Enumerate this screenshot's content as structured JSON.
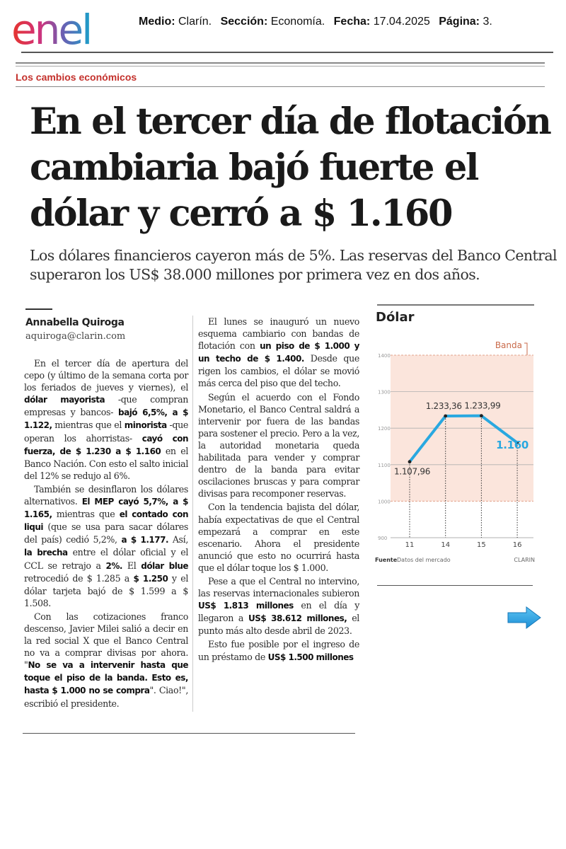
{
  "header": {
    "logo_text": "enel",
    "medio_label": "Medio:",
    "medio_value": "Clarín.",
    "seccion_label": "Sección:",
    "seccion_value": "Economía.",
    "fecha_label": "Fecha:",
    "fecha_value": "17.04.2025",
    "pagina_label": "Página:",
    "pagina_value": "3."
  },
  "article": {
    "section": "Los cambios económicos",
    "headline": [
      "En el tercer día de flotación",
      "cambiaria bajó fuerte el",
      "dólar y cerró a $ 1.160"
    ],
    "subhead": [
      "Los dólares financieros cayeron más de 5%. Las reservas del Banco Central",
      "superaron los US$ 38.000 millones por primera vez en dos años."
    ],
    "author": "Annabella Quiroga",
    "email": "aquiroga@clarin.com",
    "col1": {
      "p1": [
        {
          "t": "En el tercer día de apertura del cepo (y último de la semana corta por los feriados de jueves y viernes), el "
        },
        {
          "t": "dólar mayorista",
          "b": true
        },
        {
          "t": " -que compran empresas y bancos- "
        },
        {
          "t": "bajó 6,5%, a $ 1.122,",
          "b": true
        },
        {
          "t": " mientras que el "
        },
        {
          "t": "minorista",
          "b": true
        },
        {
          "t": " -que operan los ahorristas- "
        },
        {
          "t": "cayó con fuerza, de $ 1.230 a $ 1.160",
          "b": true
        },
        {
          "t": " en el Banco Nación. Con esto el salto inicial del 12% se redujo al 6%."
        }
      ],
      "p2": [
        {
          "t": "También se desinflaron los dólares alternativos. "
        },
        {
          "t": "El MEP cayó 5,7%, a $ 1.165,",
          "b": true
        },
        {
          "t": " mientras que "
        },
        {
          "t": "el contado con liqui",
          "b": true
        },
        {
          "t": " (que se usa para sacar dólares del país) cedió 5,2%, "
        },
        {
          "t": "a $ 1.177.",
          "b": true
        },
        {
          "t": " Así, "
        },
        {
          "t": "la brecha",
          "b": true
        },
        {
          "t": " entre el dólar oficial y el CCL se retrajo a "
        },
        {
          "t": "2%.",
          "b": true
        },
        {
          "t": " El "
        },
        {
          "t": "dólar blue",
          "b": true
        },
        {
          "t": " retrocedió de $ 1.285 a "
        },
        {
          "t": "$ 1.250",
          "b": true
        },
        {
          "t": " y el dólar tarjeta bajó de $ 1.599 a $ 1.508."
        }
      ],
      "p3": [
        {
          "t": "Con las cotizaciones franco descenso, Javier Milei salió a decir en la red social X que el Banco Central no va a comprar divisas por ahora. \""
        },
        {
          "t": "No se va a intervenir hasta que toque el piso de la banda. Esto es, hasta $ 1.000 no se compra",
          "b": true
        },
        {
          "t": "\". Ciao!\", escribió el presidente."
        }
      ]
    },
    "col2": {
      "p1": [
        {
          "t": "El lunes se inauguró un nuevo esquema cambiario con bandas de flotación con "
        },
        {
          "t": "un piso de $ 1.000 y un techo de $ 1.400.",
          "b": true
        },
        {
          "t": " Desde que rigen los cambios, el dólar se movió más cerca del piso que del techo."
        }
      ],
      "p2": [
        {
          "t": "Según el acuerdo con el Fondo Monetario, el Banco Central saldrá a intervenir por fuera de las bandas para sostener el precio. Pero a la vez, la autoridad monetaria queda habilitada para vender y comprar dentro de la banda para evitar oscilaciones bruscas y para comprar divisas para recomponer reservas."
        }
      ],
      "p3": [
        {
          "t": "Con la tendencia bajista del dólar, había expectativas de que el Central empezará a comprar en este escenario. Ahora el presidente anunció que esto no ocurrirá hasta que el dólar toque los $ 1.000."
        }
      ],
      "p4": [
        {
          "t": "Pese a que el Central no intervino, las reservas internacionales subieron "
        },
        {
          "t": "US$ 1.813 millones",
          "b": true
        },
        {
          "t": " en el día y llegaron a "
        },
        {
          "t": "US$ 38.612 millones,",
          "b": true
        },
        {
          "t": " el punto más alto desde abril de 2023."
        }
      ],
      "p5": [
        {
          "t": "Esto fue posible por el ingreso de un préstamo de "
        },
        {
          "t": "US$ 1.500 millones",
          "b": true
        }
      ]
    }
  },
  "chart_data": {
    "type": "line",
    "title": "Dólar",
    "x": [
      "11",
      "14",
      "15",
      "16"
    ],
    "series": [
      {
        "values": [
          1107.96,
          1233.36,
          1233.99,
          1160
        ]
      }
    ],
    "data_labels": [
      "1.107,96",
      "1.233,36",
      "1.233,99",
      "1.160"
    ],
    "yticks": [
      900,
      1000,
      1100,
      1200,
      1300,
      1400
    ],
    "ytick_labels": [
      "900",
      "1000",
      "1100",
      "1200",
      "1300",
      "1400"
    ],
    "ylim": [
      900,
      1400
    ],
    "band": {
      "label": "Banda",
      "min": 1000,
      "max": 1400
    },
    "source_label": "Fuente",
    "source_value": "Datos del mercado",
    "credit": "CLARIN",
    "colors": {
      "line": "#29a8e0",
      "band": "#fbe5dc",
      "band_border": "#e3a38b",
      "last_label": "#29a8e0"
    }
  },
  "icons": {
    "next": "arrow-right-icon"
  }
}
